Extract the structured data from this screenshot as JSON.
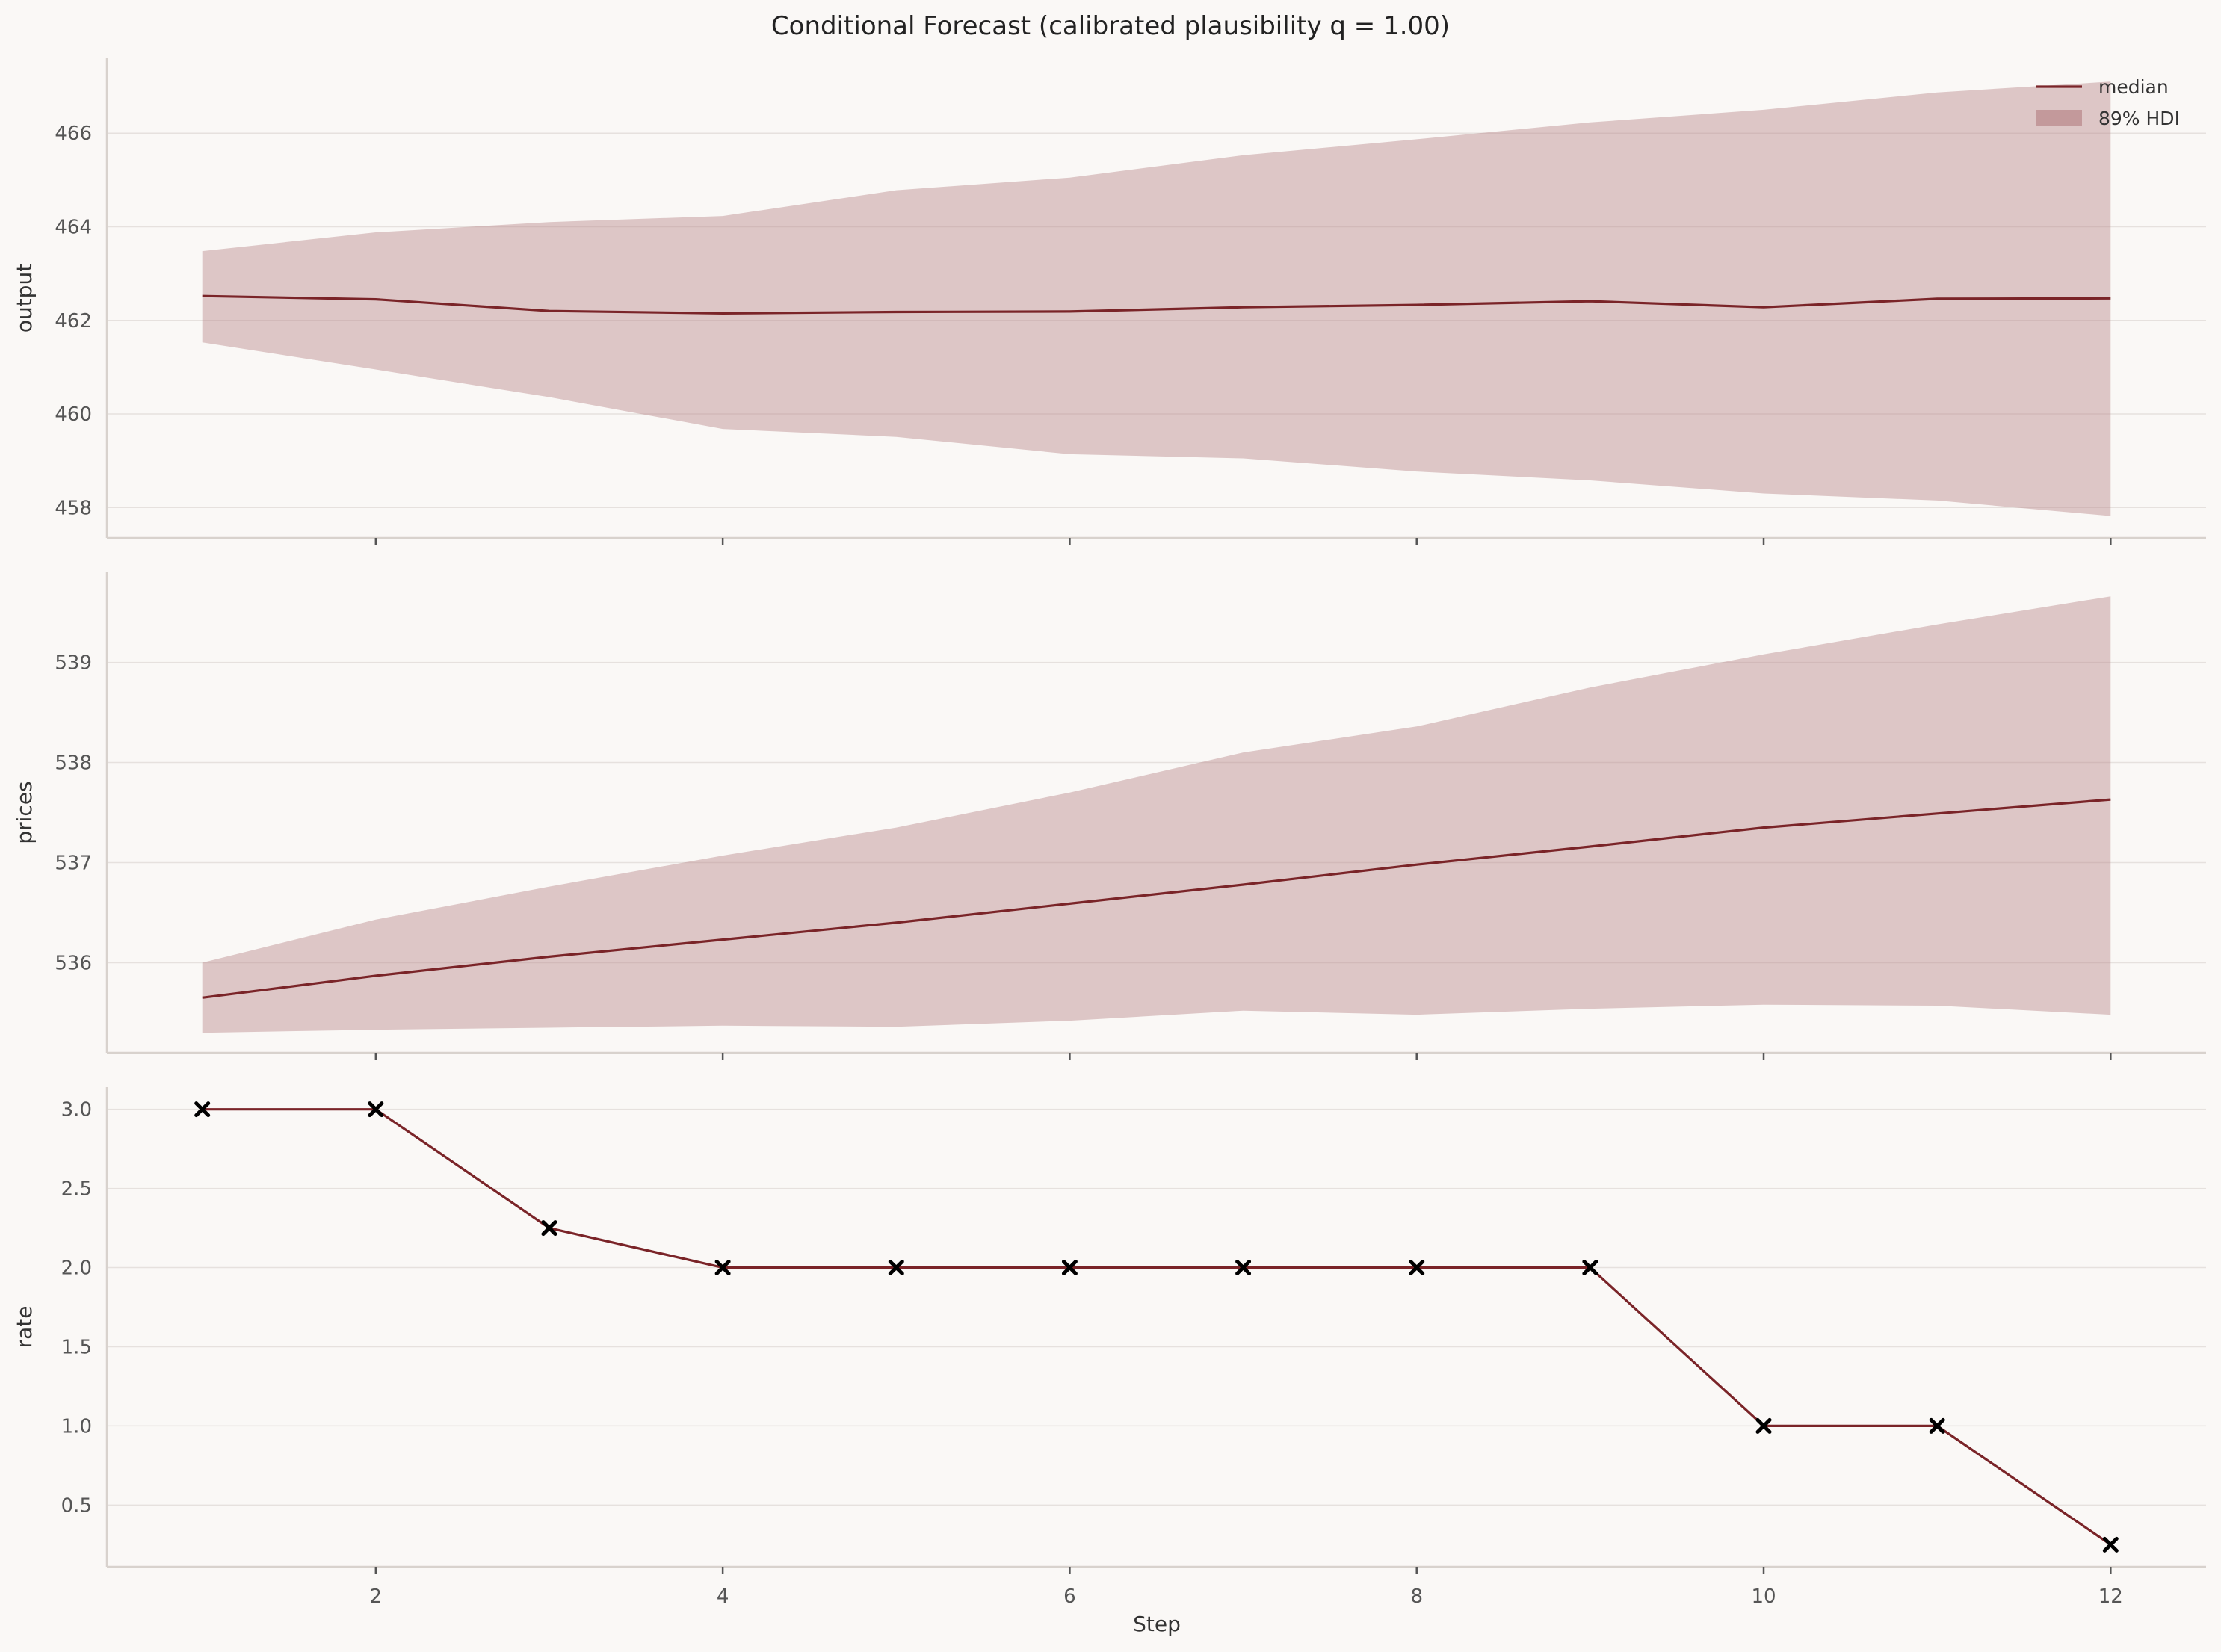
{
  "chart_data": {
    "type": "line",
    "title": "Conditional Forecast (calibrated plausibility q = 1.00)",
    "xlabel": "Step",
    "x": [
      1,
      2,
      3,
      4,
      5,
      6,
      7,
      8,
      9,
      10,
      11,
      12
    ],
    "xlim": [
      0.45,
      12.55
    ],
    "xticks": [
      2,
      4,
      6,
      8,
      10,
      12
    ],
    "legend": {
      "placement": "top-right",
      "entries": [
        "median",
        "89% HDI"
      ]
    },
    "colors": {
      "line": "#7a2428",
      "band": "#ba8a8c",
      "marker": "#000000"
    },
    "panels": [
      {
        "ylabel": "output",
        "ylim": [
          457.35,
          467.6
        ],
        "yticks": [
          458,
          460,
          462,
          464,
          466
        ],
        "median": [
          462.52,
          462.45,
          462.2,
          462.15,
          462.18,
          462.19,
          462.28,
          462.33,
          462.41,
          462.28,
          462.46,
          462.47
        ],
        "hdi_low": [
          461.53,
          460.95,
          460.36,
          459.68,
          459.51,
          459.14,
          459.05,
          458.77,
          458.58,
          458.3,
          458.15,
          457.82
        ],
        "hdi_high": [
          463.48,
          463.88,
          464.1,
          464.23,
          464.78,
          465.05,
          465.53,
          465.87,
          466.23,
          466.5,
          466.87,
          467.1
        ]
      },
      {
        "ylabel": "prices",
        "ylim": [
          535.1,
          539.9
        ],
        "yticks": [
          536,
          537,
          538,
          539
        ],
        "median": [
          535.65,
          535.87,
          536.06,
          536.23,
          536.4,
          536.59,
          536.78,
          536.98,
          537.16,
          537.35,
          537.49,
          537.63
        ],
        "hdi_low": [
          535.3,
          535.33,
          535.35,
          535.37,
          535.36,
          535.42,
          535.52,
          535.48,
          535.54,
          535.58,
          535.57,
          535.48
        ],
        "hdi_high": [
          536.0,
          536.43,
          536.76,
          537.07,
          537.35,
          537.7,
          538.1,
          538.36,
          538.75,
          539.08,
          539.38,
          539.66
        ]
      },
      {
        "ylabel": "rate",
        "ylim": [
          0.11,
          3.14
        ],
        "yticks": [
          0.5,
          1.0,
          1.5,
          2.0,
          2.5,
          3.0
        ],
        "median": [
          3.0,
          3.0,
          2.25,
          2.0,
          2.0,
          2.0,
          2.0,
          2.0,
          2.0,
          1.0,
          1.0,
          0.25
        ],
        "markers": [
          3.0,
          3.0,
          2.25,
          2.0,
          2.0,
          2.0,
          2.0,
          2.0,
          2.0,
          1.0,
          1.0,
          0.25
        ]
      }
    ]
  }
}
